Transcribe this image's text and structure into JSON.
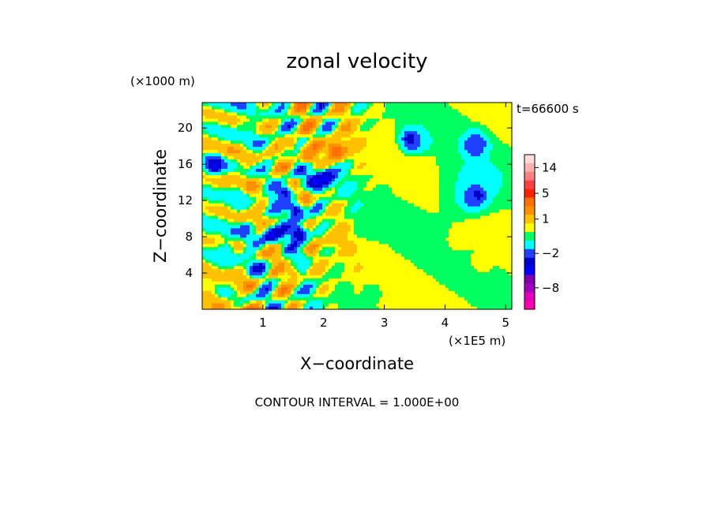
{
  "chart_data": {
    "type": "heatmap",
    "title": "zonal velocity",
    "time_label": "t=66600 s",
    "xlabel": "X−coordinate",
    "ylabel": "Z−coordinate",
    "x_unit": "(×1E5 m)",
    "y_unit": "(×1000 m)",
    "xlim": [
      0,
      5.1
    ],
    "ylim": [
      0,
      22.8
    ],
    "x_ticks": [
      1,
      2,
      3,
      4,
      5
    ],
    "y_ticks": [
      4,
      8,
      12,
      16,
      20
    ],
    "footer": "CONTOUR INTERVAL = 1.000E+00",
    "colorbar": {
      "tick_values": [
        14,
        5,
        1,
        -2,
        -8
      ],
      "tick_labels": [
        "14",
        "5",
        "1",
        "−2",
        "−8"
      ],
      "levels": [
        {
          "value": -12,
          "color": "#ff00aa"
        },
        {
          "value": -10,
          "color": "#e000c0"
        },
        {
          "value": -8,
          "color": "#a000c0"
        },
        {
          "value": -6,
          "color": "#8000b0"
        },
        {
          "value": -4,
          "color": "#0000ff"
        },
        {
          "value": -3,
          "color": "#0000cc"
        },
        {
          "value": -2,
          "color": "#2040ff"
        },
        {
          "value": -1,
          "color": "#00ffff"
        },
        {
          "value": 0,
          "color": "#00ff60"
        },
        {
          "value": 0.5,
          "color": "#ffff00"
        },
        {
          "value": 1,
          "color": "#ffc000"
        },
        {
          "value": 2,
          "color": "#ff9000"
        },
        {
          "value": 3,
          "color": "#ff7000"
        },
        {
          "value": 5,
          "color": "#ff2000"
        },
        {
          "value": 8,
          "color": "#ff4040"
        },
        {
          "value": 11,
          "color": "#ff8080"
        },
        {
          "value": 14,
          "color": "#ffb0b0"
        },
        {
          "value": 17,
          "color": "#ffdada"
        }
      ]
    },
    "features": [
      {
        "x": 1.35,
        "z": 12.8,
        "u": -4
      },
      {
        "x": 1.55,
        "z": 11.0,
        "u": -4
      },
      {
        "x": 1.6,
        "z": 8.4,
        "u": -4
      },
      {
        "x": 1.15,
        "z": 8.2,
        "u": -4
      },
      {
        "x": 1.85,
        "z": 14.0,
        "u": -4
      },
      {
        "x": 2.05,
        "z": 14.5,
        "u": -4
      },
      {
        "x": 3.45,
        "z": 18.7,
        "u": -4
      },
      {
        "x": 4.5,
        "z": 18.2,
        "u": -4
      },
      {
        "x": 4.5,
        "z": 12.5,
        "u": -4
      },
      {
        "x": 0.2,
        "z": 16.0,
        "u": -4
      },
      {
        "x": 0.6,
        "z": 12.5,
        "u": -1
      },
      {
        "x": 1.25,
        "z": 12.2,
        "u": -1
      },
      {
        "x": 0.4,
        "z": 6.5,
        "u": -1
      },
      {
        "x": 1.6,
        "z": 5.5,
        "u": -1
      },
      {
        "x": 4.4,
        "z": 12.3,
        "u": -1
      },
      {
        "x": 3.6,
        "z": 18.5,
        "u": -1
      },
      {
        "x": 4.5,
        "z": 18.3,
        "u": -1
      },
      {
        "x": 2.2,
        "z": 17.6,
        "u": 5
      },
      {
        "x": 1.75,
        "z": 17.0,
        "u": 3
      },
      {
        "x": 1.45,
        "z": 18.2,
        "u": 2
      },
      {
        "x": 1.7,
        "z": 12.5,
        "u": 3
      },
      {
        "x": 1.2,
        "z": 6.2,
        "u": 2
      },
      {
        "x": 1.5,
        "z": 4.0,
        "u": 2
      },
      {
        "x": 2.2,
        "z": 8.0,
        "u": 2
      },
      {
        "x": 0.5,
        "z": 3.0,
        "u": 1
      },
      {
        "x": 0.1,
        "z": 1.2,
        "u": 2
      },
      {
        "x": 3.4,
        "z": 14.2,
        "u": 1
      },
      {
        "x": 4.2,
        "z": 7.5,
        "u": 1
      },
      {
        "x": 4.6,
        "z": 5.2,
        "u": 1
      },
      {
        "x": 2.8,
        "z": 2.0,
        "u": 0
      },
      {
        "x": 2.7,
        "z": 9.0,
        "u": 0
      },
      {
        "x": 4.1,
        "z": 16.0,
        "u": 0
      },
      {
        "x": 0.7,
        "z": 20.0,
        "u": 0
      },
      {
        "x": 3.0,
        "z": 12.0,
        "u": 0.5
      },
      {
        "x": 4.8,
        "z": 21.0,
        "u": 0.5
      }
    ]
  }
}
